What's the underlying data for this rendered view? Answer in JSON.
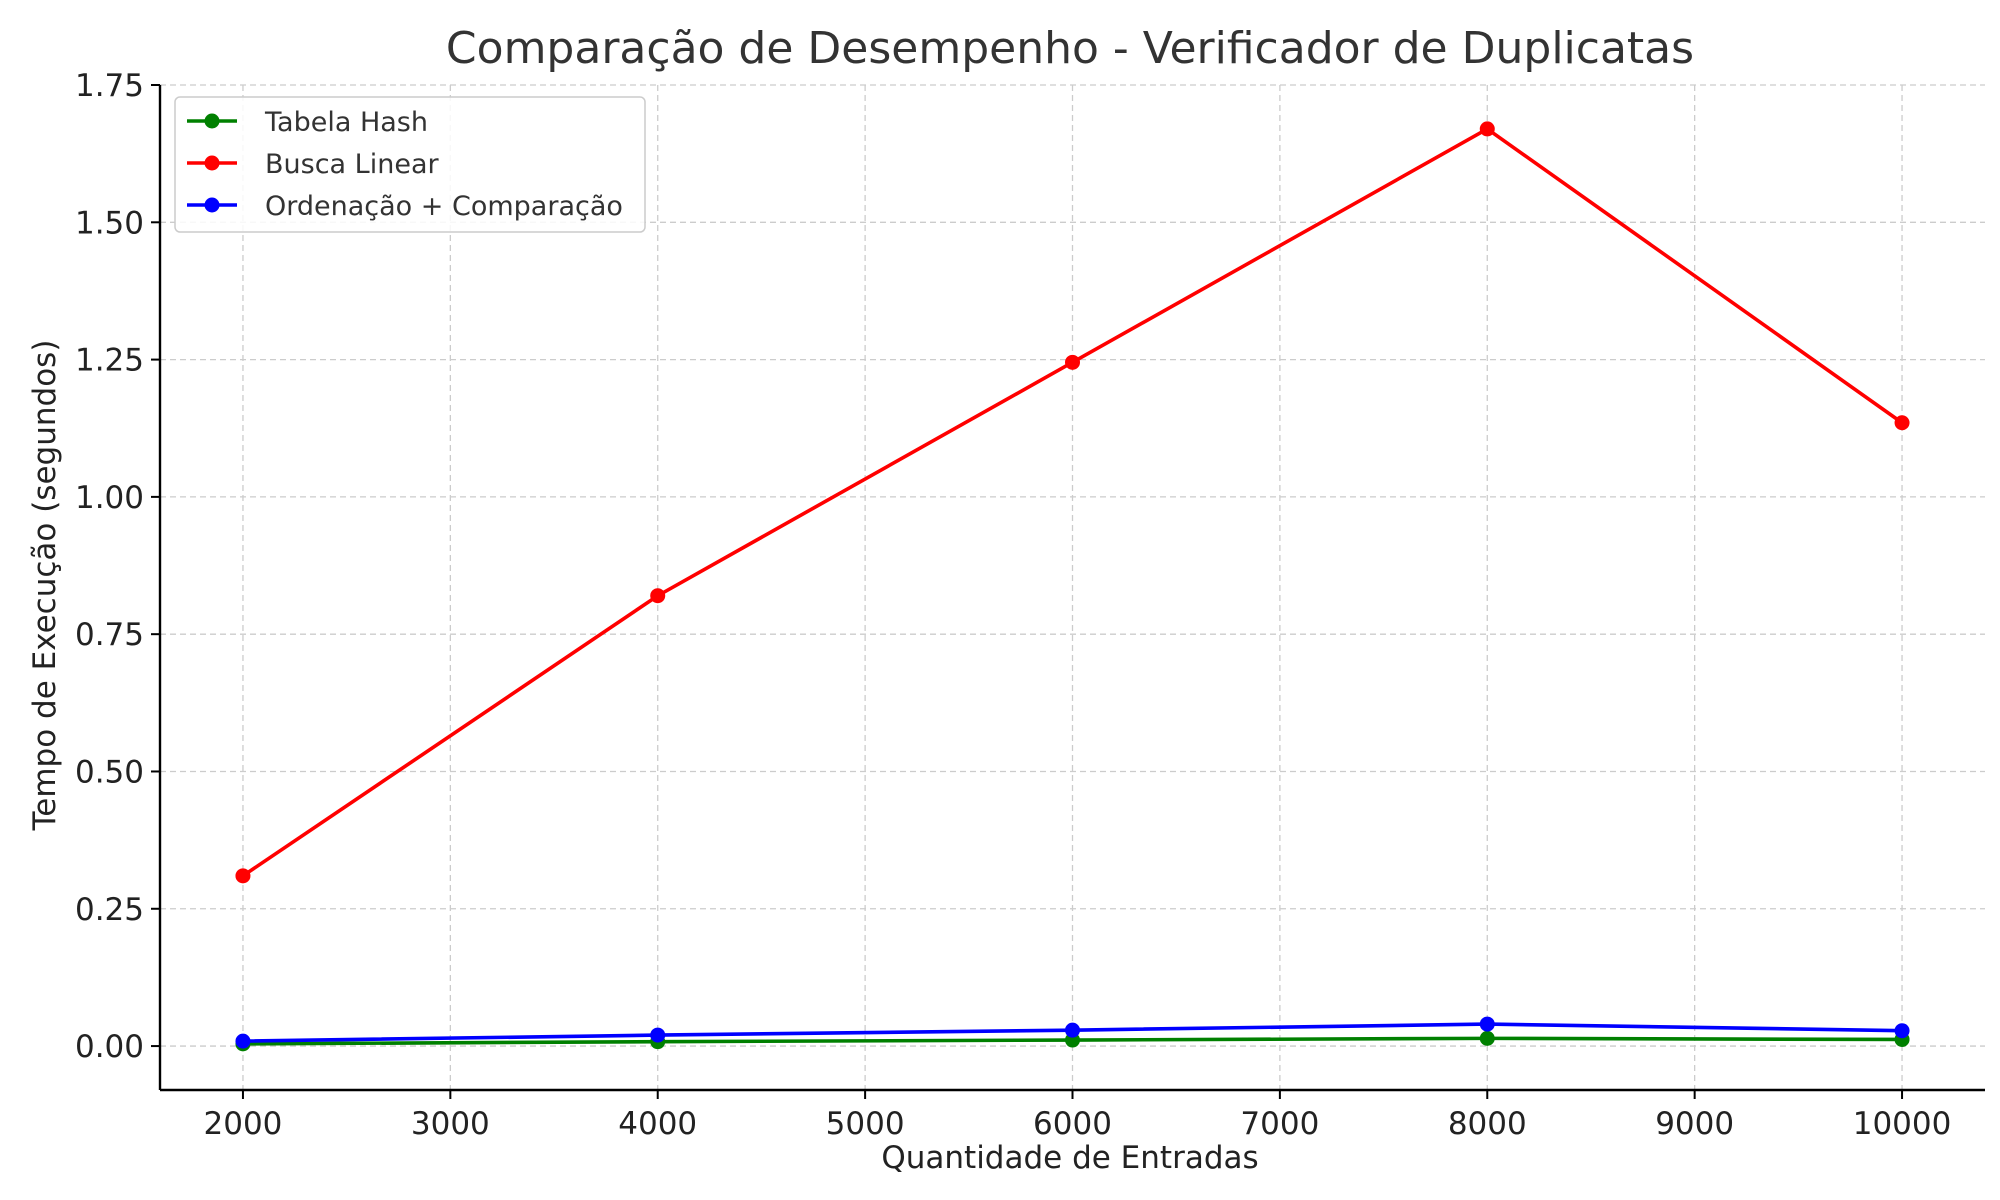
{
  "chart_data": {
    "type": "line",
    "title": "Comparação de Desempenho - Verificador de Duplicatas",
    "xlabel": "Quantidade de Entradas",
    "ylabel": "Tempo de Execução (segundos)",
    "x": [
      2000,
      4000,
      6000,
      8000,
      10000
    ],
    "xlim": [
      1600,
      10400
    ],
    "ylim": [
      -0.08,
      1.75
    ],
    "xticks": [
      2000,
      3000,
      4000,
      5000,
      6000,
      7000,
      8000,
      9000,
      10000
    ],
    "yticks": [
      "0.00",
      "0.25",
      "0.50",
      "0.75",
      "1.00",
      "1.25",
      "1.50",
      "1.75"
    ],
    "grid": true,
    "legend_position": "top-left",
    "series": [
      {
        "name": "Tabela Hash",
        "color": "#008000",
        "values": [
          0.004,
          0.008,
          0.011,
          0.014,
          0.012
        ]
      },
      {
        "name": "Busca Linear",
        "color": "#ff0000",
        "values": [
          0.31,
          0.82,
          1.245,
          1.67,
          1.135
        ]
      },
      {
        "name": "Ordenação + Comparação",
        "color": "#0000ff",
        "values": [
          0.009,
          0.02,
          0.029,
          0.04,
          0.028
        ]
      }
    ]
  }
}
